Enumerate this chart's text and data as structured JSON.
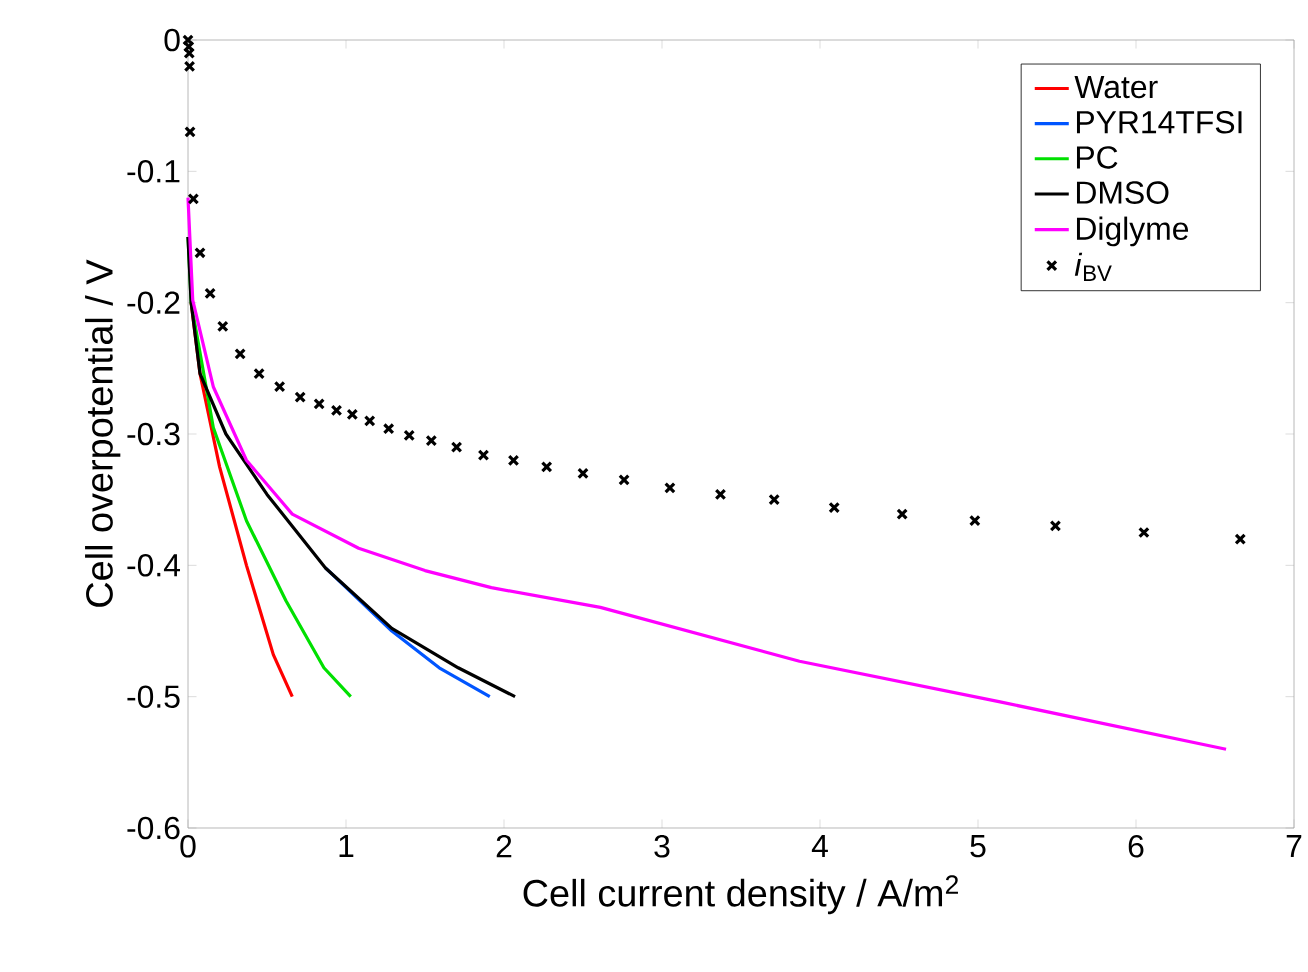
{
  "chart_data": {
    "type": "line",
    "xlabel": "Cell current density  /  A/m$^{2}$",
    "ylabel": "Cell overpotential  /  V",
    "xlim": [
      0,
      7
    ],
    "ylim": [
      -0.6,
      0
    ],
    "xticks": [
      0,
      1,
      2,
      3,
      4,
      5,
      6,
      7
    ],
    "yticks": [
      -0.6,
      -0.5,
      -0.4,
      -0.3,
      -0.2,
      -0.1,
      0
    ],
    "grid": false,
    "legend": "top right",
    "series": [
      {
        "name": "Water",
        "color": "#ff0000",
        "x": [
          0.02,
          0.076,
          0.2,
          0.37,
          0.54,
          0.66
        ],
        "values": [
          -0.2,
          -0.254,
          -0.325,
          -0.4,
          -0.468,
          -0.5
        ]
      },
      {
        "name": "PYR14TFSI",
        "color": "#0055ff",
        "x": [
          0.87,
          1.29,
          1.59,
          1.91
        ],
        "values": [
          -0.402,
          -0.45,
          -0.478,
          -0.5
        ]
      },
      {
        "name": "PC",
        "color": "#00e000",
        "x": [
          0,
          0.02,
          0.16,
          0.37,
          0.62,
          0.86,
          1.03
        ],
        "values": [
          -0.15,
          -0.2,
          -0.295,
          -0.366,
          -0.427,
          -0.478,
          -0.5
        ]
      },
      {
        "name": "DMSO",
        "color": "#000000",
        "x": [
          0,
          0.02,
          0.076,
          0.24,
          0.5,
          0.87,
          1.29,
          1.71,
          2.07
        ],
        "values": [
          -0.15,
          -0.2,
          -0.254,
          -0.3,
          -0.346,
          -0.402,
          -0.448,
          -0.478,
          -0.5
        ]
      },
      {
        "name": "Diglyme",
        "color": "#ff00ff",
        "x": [
          0,
          0.03,
          0.16,
          0.37,
          0.66,
          1.08,
          1.5,
          1.92,
          2.61,
          3.87,
          5.14,
          6.57
        ],
        "values": [
          -0.12,
          -0.198,
          -0.264,
          -0.32,
          -0.361,
          -0.387,
          -0.404,
          -0.417,
          -0.432,
          -0.473,
          -0.504,
          -0.54
        ]
      },
      {
        "name": "*i*$_{BV}$",
        "type": "scatter",
        "marker": "cross",
        "color": "#000000",
        "x": [
          0,
          0.005,
          0.008,
          0.01,
          0.013,
          0.034,
          0.076,
          0.14,
          0.22,
          0.33,
          0.45,
          0.58,
          0.71,
          0.83,
          0.94,
          1.04,
          1.15,
          1.27,
          1.4,
          1.54,
          1.7,
          1.87,
          2.06,
          2.27,
          2.5,
          2.76,
          3.05,
          3.37,
          3.71,
          4.09,
          4.52,
          4.98,
          5.49,
          6.05,
          6.66
        ],
        "values": [
          0,
          -0.005,
          -0.01,
          -0.02,
          -0.07,
          -0.121,
          -0.162,
          -0.193,
          -0.218,
          -0.239,
          -0.254,
          -0.264,
          -0.272,
          -0.277,
          -0.282,
          -0.285,
          -0.29,
          -0.296,
          -0.301,
          -0.305,
          -0.31,
          -0.316,
          -0.32,
          -0.325,
          -0.33,
          -0.335,
          -0.341,
          -0.346,
          -0.35,
          -0.356,
          -0.361,
          -0.366,
          -0.37,
          -0.375,
          -0.38
        ]
      }
    ]
  }
}
